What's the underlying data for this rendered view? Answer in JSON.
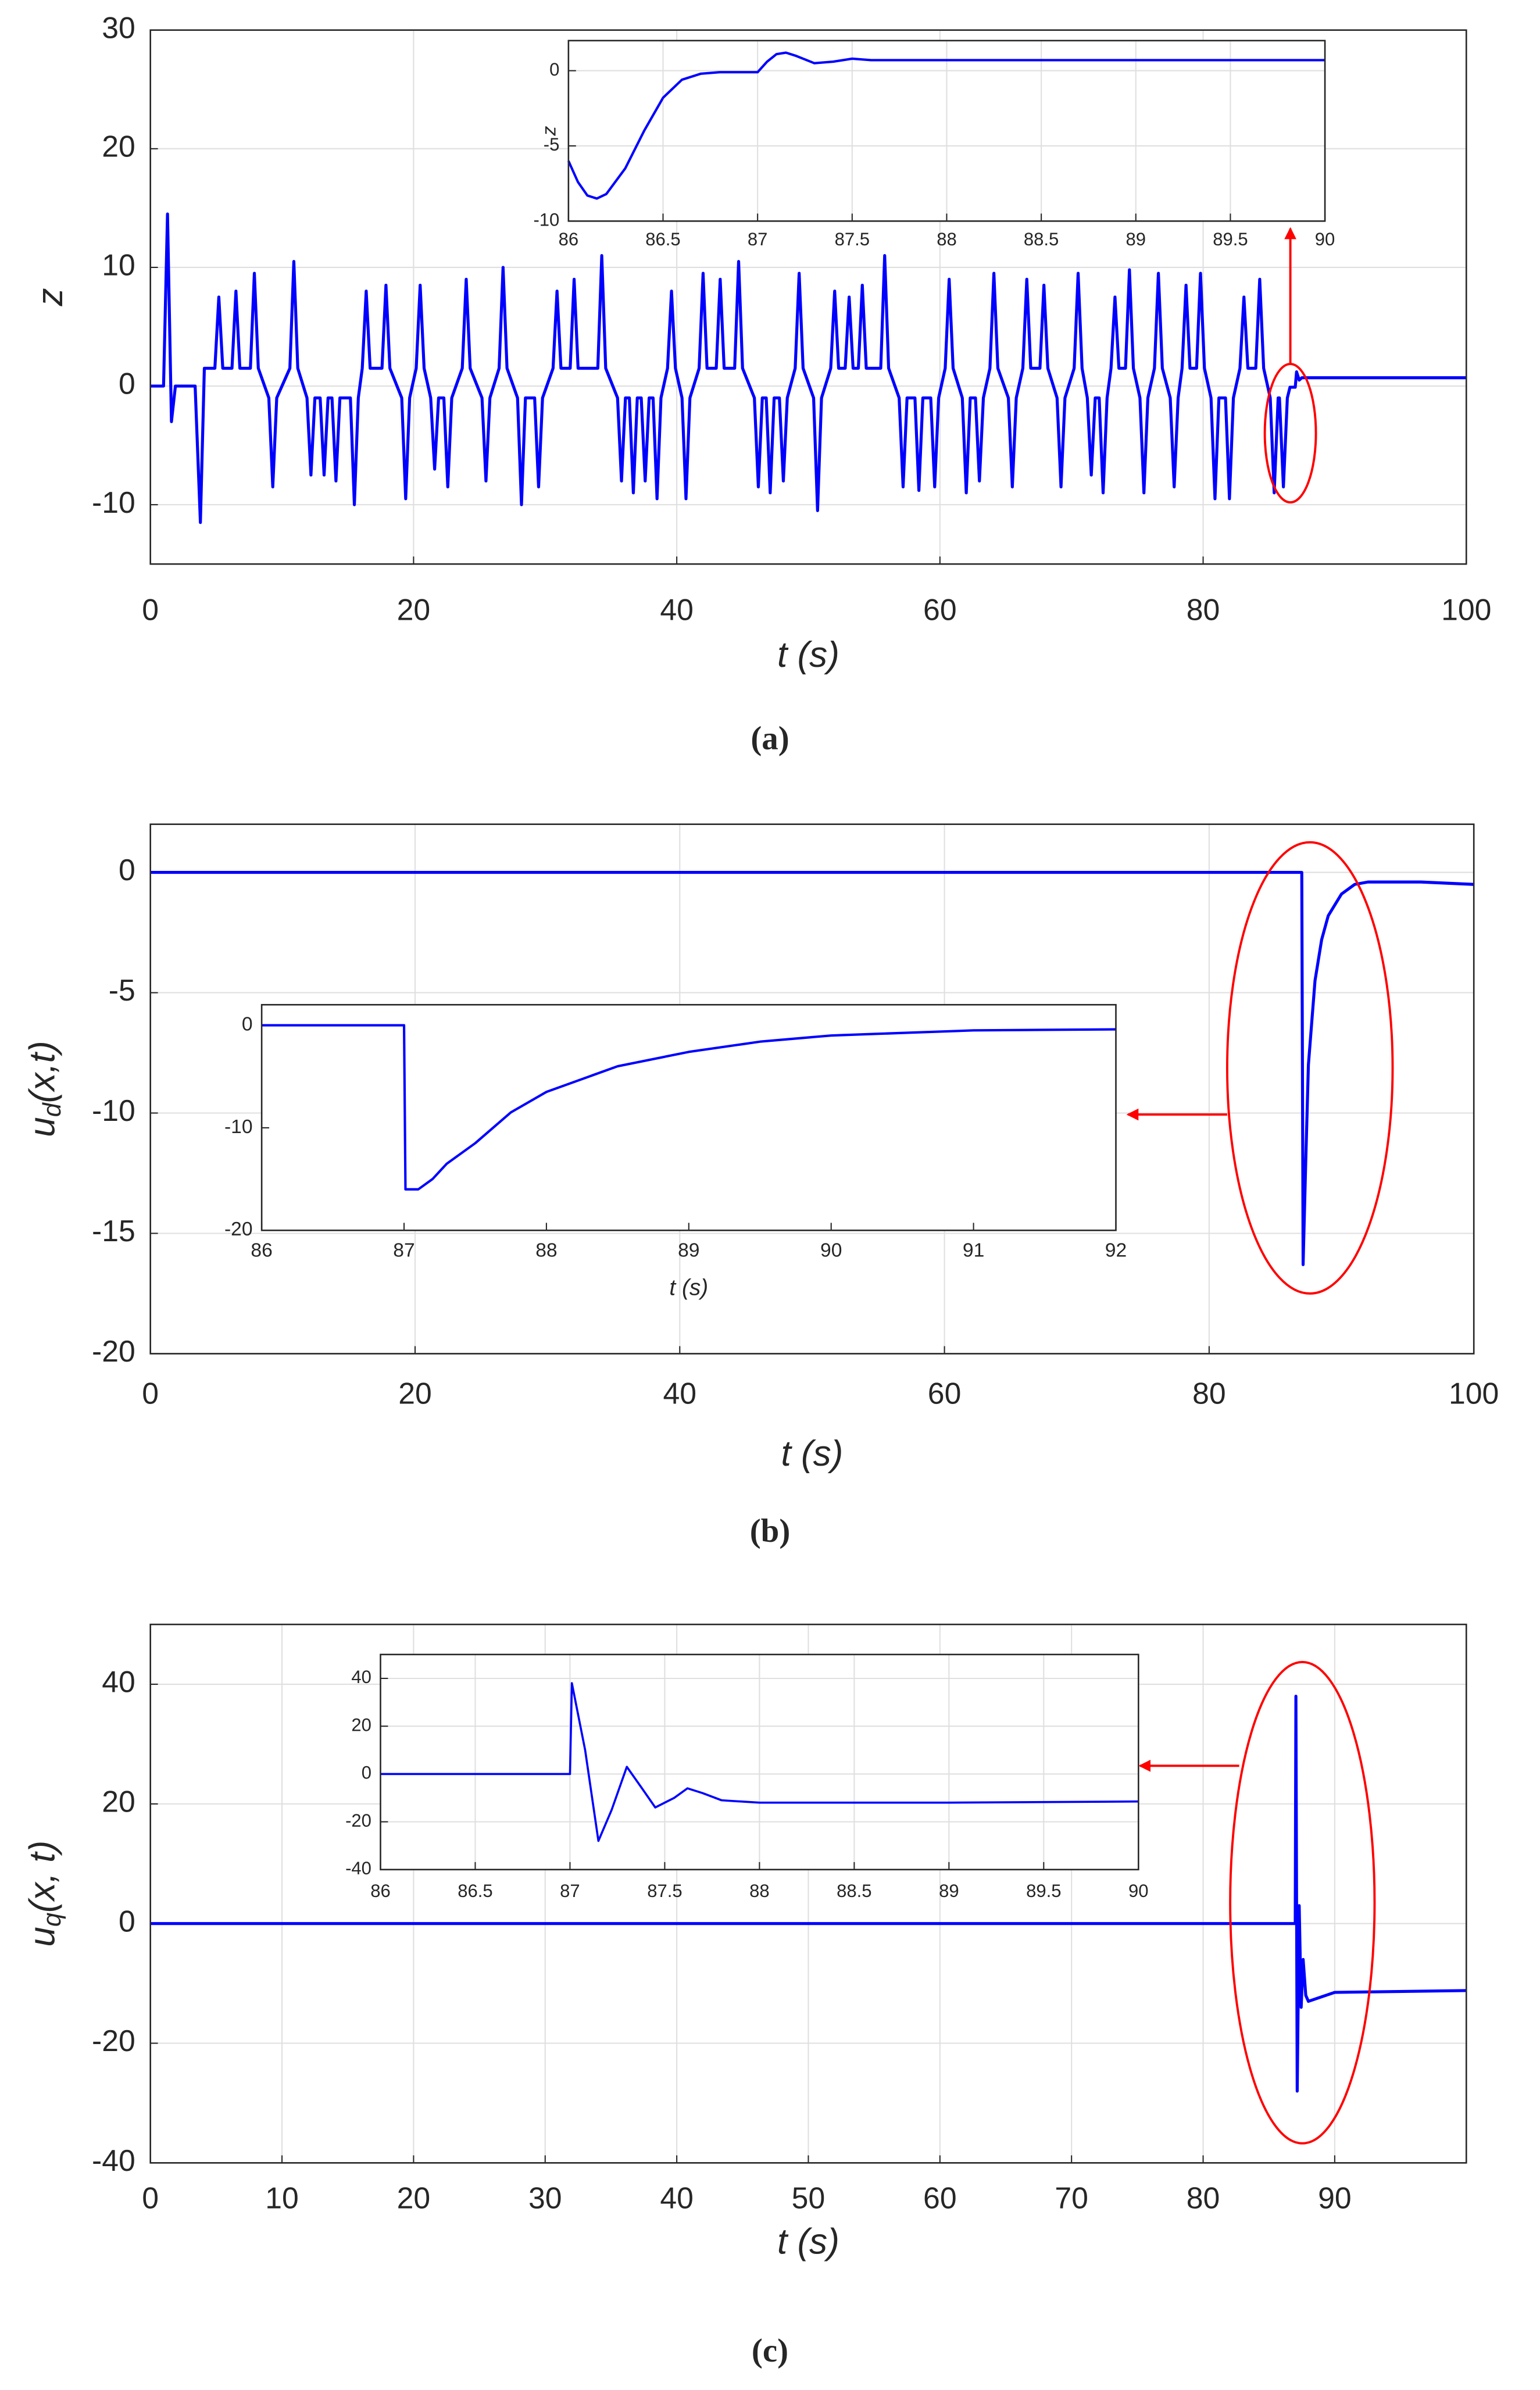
{
  "chart_data": [
    {
      "type": "line",
      "xlabel": "t (s)",
      "ylabel": "z",
      "caption": "(a)",
      "color": "#0000ff",
      "grid": true,
      "xlim": [
        0,
        100
      ],
      "ylim": [
        -15,
        30
      ],
      "xticks": [
        0,
        20,
        40,
        60,
        80,
        100
      ],
      "yticks": [
        -10,
        0,
        10,
        20,
        30
      ],
      "x": [
        0,
        1.0,
        1.3,
        1.6,
        1.9,
        3.4,
        3.8,
        4.1,
        4.9,
        5.2,
        5.5,
        6.2,
        6.5,
        6.8,
        7.6,
        7.9,
        8.2,
        9.0,
        9.3,
        9.6,
        10.6,
        10.9,
        11.2,
        11.9,
        12.2,
        12.5,
        12.9,
        13.2,
        13.5,
        13.8,
        14.1,
        14.4,
        15.2,
        15.5,
        15.8,
        16.1,
        16.4,
        16.7,
        17.6,
        17.9,
        18.2,
        19.1,
        19.4,
        19.7,
        20.2,
        20.5,
        20.8,
        21.3,
        21.6,
        21.9,
        22.3,
        22.6,
        22.9,
        23.7,
        24.0,
        24.3,
        25.2,
        25.5,
        25.8,
        26.5,
        26.8,
        27.1,
        27.9,
        28.2,
        28.5,
        29.2,
        29.5,
        29.8,
        30.6,
        30.9,
        31.2,
        31.9,
        32.2,
        32.5,
        34.0,
        34.3,
        34.6,
        35.5,
        35.8,
        36.1,
        36.4,
        36.7,
        37.0,
        37.3,
        37.6,
        37.9,
        38.2,
        38.5,
        38.8,
        39.3,
        39.6,
        39.9,
        40.4,
        40.7,
        41.0,
        41.7,
        42.0,
        42.3,
        43.0,
        43.3,
        43.6,
        44.4,
        44.7,
        45.0,
        45.9,
        46.2,
        46.5,
        46.8,
        47.1,
        47.4,
        47.8,
        48.1,
        48.4,
        49.0,
        49.3,
        49.6,
        50.4,
        50.7,
        51.0,
        51.7,
        52.0,
        52.3,
        52.8,
        53.1,
        53.4,
        53.8,
        54.1,
        54.4,
        55.5,
        55.8,
        56.1,
        56.9,
        57.2,
        57.5,
        58.1,
        58.4,
        58.7,
        59.3,
        59.6,
        59.9,
        60.4,
        60.7,
        61.0,
        61.7,
        62.0,
        62.3,
        62.7,
        63.0,
        63.3,
        63.8,
        64.1,
        64.4,
        65.2,
        65.5,
        65.8,
        66.3,
        66.6,
        66.9,
        67.6,
        67.9,
        68.2,
        68.9,
        69.2,
        69.5,
        70.2,
        70.5,
        70.8,
        71.2,
        71.5,
        71.8,
        72.1,
        72.4,
        72.7,
        73.0,
        73.3,
        73.6,
        74.1,
        74.4,
        74.7,
        75.2,
        75.5,
        75.8,
        76.3,
        76.6,
        76.9,
        77.5,
        77.8,
        78.1,
        78.4,
        78.7,
        79.0,
        79.5,
        79.8,
        80.1,
        80.6,
        80.9,
        81.2,
        81.7,
        82.0,
        82.3,
        82.8,
        83.1,
        83.4,
        84.0,
        84.3,
        84.6,
        85.1,
        85.4,
        85.7,
        85.8,
        86.1,
        86.4,
        86.6,
        87.0,
        87.1,
        87.3,
        87.5,
        100
      ],
      "values": [
        0,
        0,
        14.5,
        -3,
        0,
        0,
        -11.5,
        1.5,
        1.5,
        7.5,
        1.5,
        1.5,
        8,
        1.5,
        1.5,
        9.5,
        1.5,
        -1,
        -8.5,
        -1,
        1.5,
        10.5,
        1.5,
        -1,
        -7.5,
        -1,
        -1,
        -7.5,
        -1,
        -1,
        -8,
        -1,
        -1,
        -10,
        -1,
        1.5,
        8,
        1.5,
        1.5,
        8.5,
        1.5,
        -1,
        -9.5,
        -1,
        1.5,
        8.5,
        1.5,
        -1,
        -7,
        -1,
        -1,
        -8.5,
        -1,
        1.5,
        9,
        1.5,
        -1,
        -8,
        -1,
        1.5,
        10,
        1.5,
        -1,
        -10,
        -1,
        -1,
        -8.5,
        -1,
        1.5,
        8,
        1.5,
        1.5,
        9,
        1.5,
        1.5,
        11,
        1.5,
        -1,
        -8,
        -1,
        -1,
        -9,
        -1,
        -1,
        -8,
        -1,
        -1,
        -9.5,
        -1,
        1.5,
        8,
        1.5,
        -1,
        -9.5,
        -1,
        1.5,
        9.5,
        1.5,
        1.5,
        9,
        1.5,
        1.5,
        10.5,
        1.5,
        -1,
        -8.5,
        -1,
        -1,
        -9,
        -1,
        -1,
        -8,
        -1,
        1.5,
        9.5,
        1.5,
        -1,
        -10.5,
        -1,
        1.5,
        8,
        1.5,
        1.5,
        7.5,
        1.5,
        1.5,
        8.5,
        1.5,
        1.5,
        11,
        1.5,
        -1,
        -8.5,
        -1,
        -1,
        -8.8,
        -1,
        -1,
        -8.5,
        -1,
        1.5,
        9,
        1.5,
        -1,
        -9,
        -1,
        -1,
        -8,
        -1,
        1.5,
        9.5,
        1.5,
        -1,
        -8.5,
        -1,
        1.5,
        9,
        1.5,
        1.5,
        8.5,
        1.5,
        -1,
        -8.5,
        -1,
        1.5,
        9.5,
        1.5,
        -1,
        -7.5,
        -1,
        -1,
        -9,
        -1,
        1.5,
        7.5,
        1.5,
        1.5,
        9.8,
        1.5,
        -1,
        -9,
        -1,
        1.5,
        9.5,
        1.5,
        -1,
        -8.5,
        -1,
        1.5,
        8.5,
        1.5,
        1.5,
        9.5,
        1.5,
        -1,
        -9.5,
        -1,
        -1,
        -9.5,
        -1,
        1.5,
        7.5,
        1.5,
        1.5,
        9,
        1.5,
        -1,
        -9,
        -1,
        -1,
        -8.5,
        -1,
        -0.1,
        -0.1,
        1.2,
        0.5,
        0.7,
        0.7
      ]
    },
    {
      "type": "line",
      "ylabel": "z",
      "color": "#0000ff",
      "grid": true,
      "xlim": [
        86,
        90
      ],
      "ylim": [
        -10,
        2
      ],
      "xticks": [
        86,
        86.5,
        87,
        87.5,
        88,
        88.5,
        89,
        89.5,
        90
      ],
      "yticks": [
        -10,
        -5,
        0
      ],
      "x": [
        86,
        86.05,
        86.1,
        86.15,
        86.2,
        86.3,
        86.4,
        86.5,
        86.6,
        86.7,
        86.8,
        87,
        87.05,
        87.1,
        87.15,
        87.2,
        87.3,
        87.4,
        87.5,
        87.6,
        88,
        89,
        90
      ],
      "values": [
        -6,
        -7.4,
        -8.3,
        -8.5,
        -8.2,
        -6.5,
        -4,
        -1.8,
        -0.6,
        -0.2,
        -0.1,
        -0.1,
        0.6,
        1.1,
        1.2,
        1,
        0.5,
        0.6,
        0.8,
        0.7,
        0.7,
        0.7,
        0.7
      ]
    },
    {
      "type": "line",
      "xlabel": "t (s)",
      "ylabel": {
        "main": "u",
        "sub": "d",
        "rest": "(x,t)"
      },
      "caption": "(b)",
      "color": "#0000ff",
      "grid": true,
      "xlim": [
        0,
        100
      ],
      "ylim": [
        -20,
        2
      ],
      "xticks": [
        0,
        20,
        40,
        60,
        80,
        100
      ],
      "yticks": [
        -20,
        -15,
        -10,
        -5,
        0
      ],
      "x": [
        0,
        87,
        87.1,
        87.3,
        87.5,
        88,
        88.5,
        89,
        90,
        91,
        92,
        96,
        100
      ],
      "values": [
        0,
        0,
        -16.3,
        -12,
        -8,
        -4.5,
        -2.8,
        -1.8,
        -0.9,
        -0.5,
        -0.4,
        -0.4,
        -0.5
      ]
    },
    {
      "type": "line",
      "xlabel": "t (s)",
      "color": "#0000ff",
      "grid": false,
      "xlim": [
        86,
        92
      ],
      "ylim": [
        -20,
        2
      ],
      "xticks": [
        86,
        87,
        88,
        89,
        90,
        91,
        92
      ],
      "yticks": [
        -20,
        -10,
        0
      ],
      "x": [
        86,
        87,
        87.01,
        87.1,
        87.2,
        87.3,
        87.5,
        87.75,
        88,
        88.5,
        89,
        89.5,
        90,
        91,
        92
      ],
      "values": [
        0,
        0,
        -16,
        -16,
        -15,
        -13.5,
        -11.5,
        -8.5,
        -6.5,
        -4,
        -2.6,
        -1.6,
        -1,
        -0.5,
        -0.4
      ]
    },
    {
      "type": "line",
      "xlabel": "t (s)",
      "ylabel": {
        "main": "u",
        "sub": "q",
        "rest": "(x, t)"
      },
      "caption": "(c)",
      "color": "#0000ff",
      "grid": true,
      "xlim": [
        0,
        100
      ],
      "ylim": [
        -40,
        50
      ],
      "xticks": [
        0,
        10,
        20,
        30,
        40,
        50,
        60,
        70,
        80,
        90
      ],
      "yticks": [
        -40,
        -20,
        0,
        20,
        40
      ],
      "x": [
        0,
        87,
        87.05,
        87.15,
        87.3,
        87.45,
        87.6,
        87.8,
        88,
        90,
        100
      ],
      "values": [
        0,
        0,
        38,
        -28,
        3,
        -14,
        -6,
        -12,
        -13,
        -11.5,
        -11.2
      ]
    },
    {
      "type": "line",
      "color": "#0000ff",
      "grid": true,
      "xlim": [
        86,
        90
      ],
      "ylim": [
        -40,
        50
      ],
      "xticks": [
        86,
        86.5,
        87,
        87.5,
        88,
        88.5,
        89,
        89.5,
        90
      ],
      "yticks": [
        -40,
        -20,
        0,
        20,
        40
      ],
      "x": [
        86,
        87,
        87.01,
        87.08,
        87.15,
        87.22,
        87.3,
        87.38,
        87.45,
        87.55,
        87.62,
        87.7,
        87.8,
        88,
        89,
        90
      ],
      "values": [
        0,
        0,
        38,
        10,
        -28,
        -15,
        3,
        -6,
        -14,
        -10,
        -6,
        -8,
        -11,
        -12,
        -12,
        -11.5
      ]
    }
  ]
}
